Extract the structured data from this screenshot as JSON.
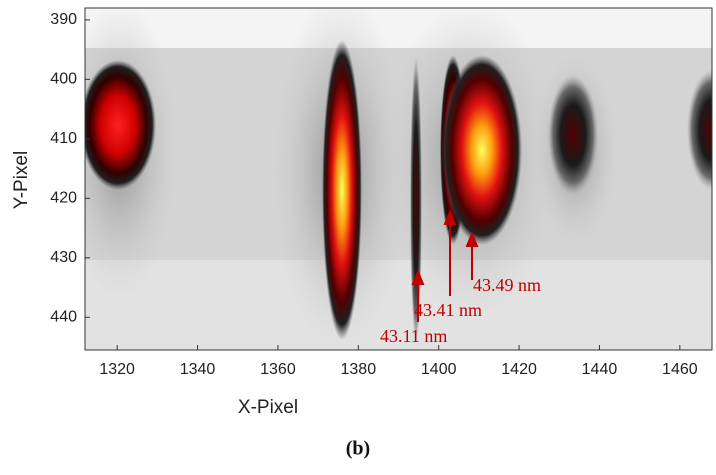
{
  "chart_data": {
    "type": "heatmap",
    "xlabel": "X-Pixel",
    "ylabel": "Y-Pixel",
    "xlim": [
      1312,
      1468
    ],
    "xticks": [
      1320,
      1340,
      1360,
      1380,
      1400,
      1420,
      1440,
      1460
    ],
    "ylim": [
      388,
      445.5
    ],
    "yticks": [
      390,
      400,
      410,
      420,
      430,
      440
    ],
    "y_inverted": true,
    "annotations": [
      "43.49 nm",
      "43.41 nm",
      "43.11 nm"
    ],
    "caption": "(b)"
  }
}
